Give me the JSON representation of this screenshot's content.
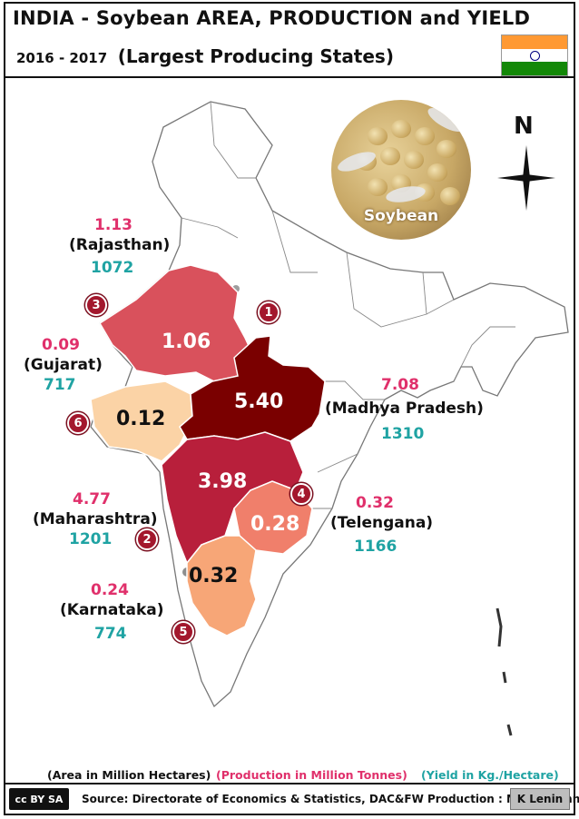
{
  "header": {
    "title": "INDIA - Soybean AREA, PRODUCTION and  YIELD",
    "years": "2016 - 2017",
    "subtitle": "(Largest Producing States)"
  },
  "photo_caption": "Soybean",
  "compass_label": "N",
  "states": [
    {
      "rank": "1",
      "name": "(Madhya  Pradesh)",
      "area": "5.40",
      "production": "7.08",
      "yield": "1310",
      "color": "#7a0000"
    },
    {
      "rank": "2",
      "name": "(Maharashtra)",
      "area": "3.98",
      "production": "4.77",
      "yield": "1201",
      "color": "#b81f3b"
    },
    {
      "rank": "3",
      "name": "(Rajasthan)",
      "area": "1.06",
      "production": "1.13",
      "yield": "1072",
      "color": "#d9515c"
    },
    {
      "rank": "4",
      "name": "(Telengana)",
      "area": "0.28",
      "production": "0.32",
      "yield": "1166",
      "color": "#f07f6b"
    },
    {
      "rank": "5",
      "name": "(Karnataka)",
      "area": "0.32",
      "production": "0.24",
      "yield": "774",
      "color": "#f7a677"
    },
    {
      "rank": "6",
      "name": "(Gujarat)",
      "area": "0.12",
      "production": "0.09",
      "yield": "717",
      "color": "#fbd3a6"
    }
  ],
  "legend": {
    "area": "(Area in Million Hectares)",
    "production": "(Production in Million Tonnes)",
    "yield": "(Yield in Kg./Hectare)"
  },
  "colors": {
    "production_text": "#e0306b",
    "yield_text": "#1fa3a3"
  },
  "footer": {
    "license": "cc BY SA",
    "source": "Source: Directorate of Economics & Statistics, DAC&FW  Production : Million Tonnes",
    "author": "K Lenin"
  }
}
